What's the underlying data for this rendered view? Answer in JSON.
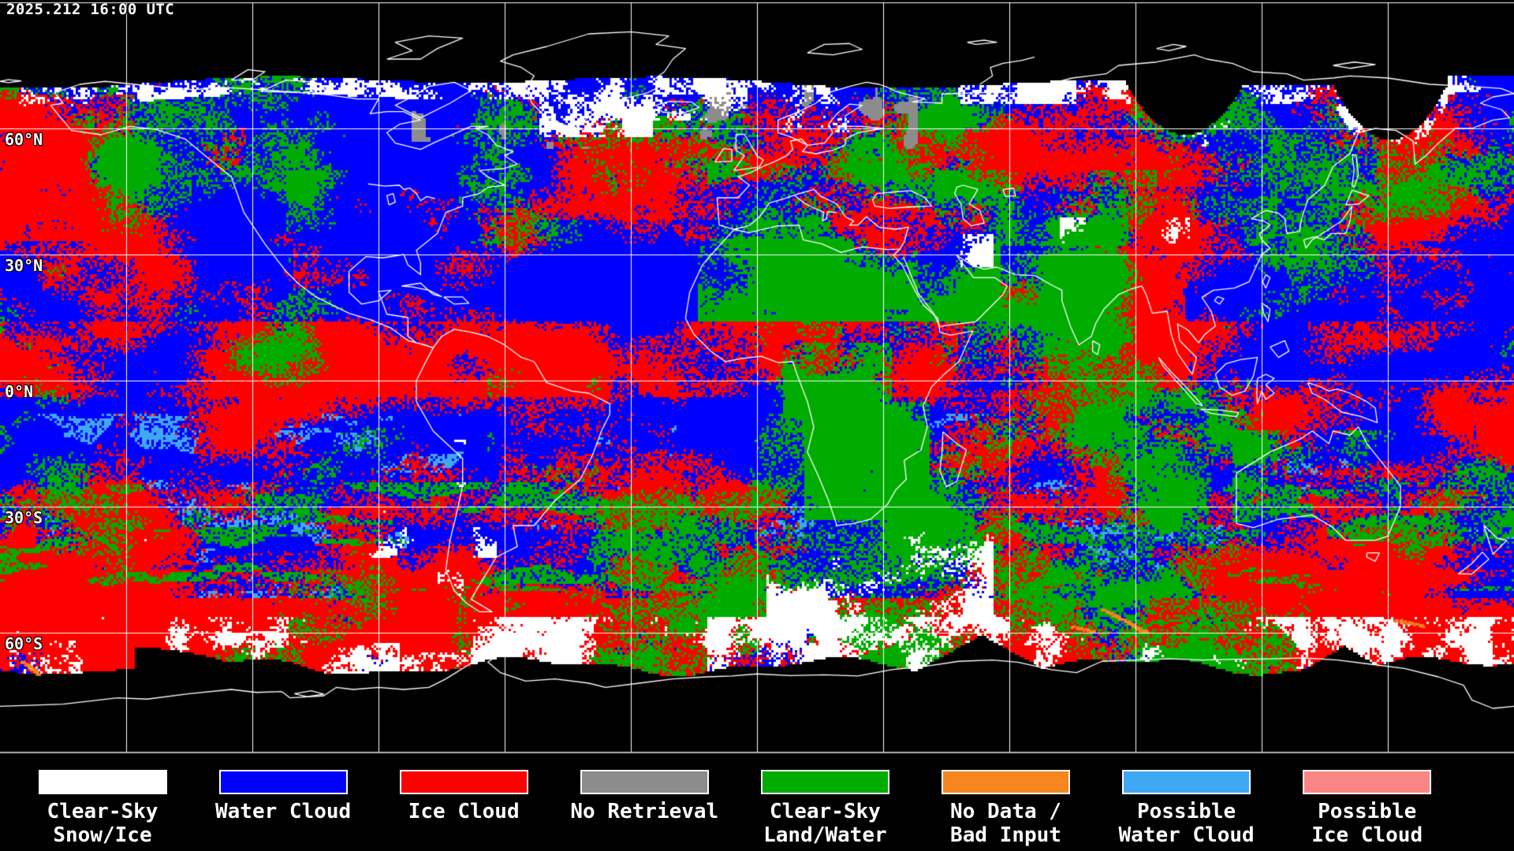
{
  "header": {
    "timestamp": "2025.212 16:00 UTC"
  },
  "map": {
    "background": "#000000",
    "grid_color": "#FFFFFF",
    "coastline_color": "#FFFFFF",
    "separator_color": "#B0B0B0",
    "grid": {
      "lat_step_deg": 30,
      "lon_step_deg": 30
    },
    "lat_labels": [
      {
        "text": "60°N",
        "lat": 60
      },
      {
        "text": "30°N",
        "lat": 30
      },
      {
        "text": "0°N",
        "lat": 0
      },
      {
        "text": "30°S",
        "lat": -30
      },
      {
        "text": "60°S",
        "lat": -60
      }
    ]
  },
  "classes": {
    "clear_sky_snow_ice": "#FFFFFF",
    "water_cloud": "#0000FF",
    "ice_cloud": "#FF0000",
    "no_retrieval": "#8C8C8C",
    "clear_sky_land_water": "#00AC00",
    "no_data_bad_input": "#F6861F",
    "possible_water_cloud": "#3FA8F5",
    "possible_ice_cloud": "#FA8585"
  },
  "legend": {
    "items": [
      {
        "name": "clear-sky-snow-ice",
        "color_key": "clear_sky_snow_ice",
        "line1": "Clear-Sky",
        "line2": "Snow/Ice"
      },
      {
        "name": "water-cloud",
        "color_key": "water_cloud",
        "line1": "Water Cloud",
        "line2": ""
      },
      {
        "name": "ice-cloud",
        "color_key": "ice_cloud",
        "line1": "Ice Cloud",
        "line2": ""
      },
      {
        "name": "no-retrieval",
        "color_key": "no_retrieval",
        "line1": "No Retrieval",
        "line2": ""
      },
      {
        "name": "clear-sky-land-water",
        "color_key": "clear_sky_land_water",
        "line1": "Clear-Sky",
        "line2": "Land/Water"
      },
      {
        "name": "no-data-bad-input",
        "color_key": "no_data_bad_input",
        "line1": "No Data /",
        "line2": "Bad Input"
      },
      {
        "name": "possible-water-cloud",
        "color_key": "possible_water_cloud",
        "line1": "Possible",
        "line2": "Water Cloud"
      },
      {
        "name": "possible-ice-cloud",
        "color_key": "possible_ice_cloud",
        "line1": "Possible",
        "line2": "Ice Cloud"
      }
    ]
  }
}
